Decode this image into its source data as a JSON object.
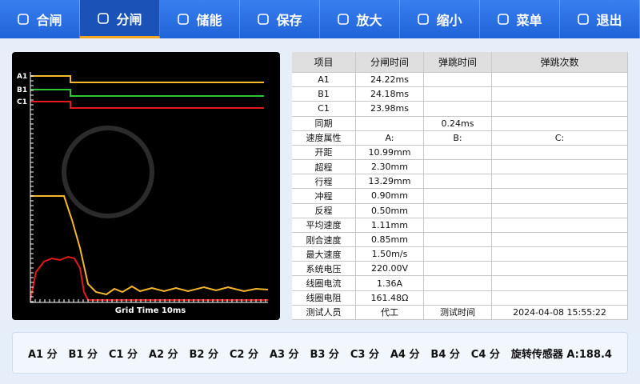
{
  "toolbar": {
    "buttons": [
      "合闸",
      "分闸",
      "储能",
      "保存",
      "放大",
      "缩小",
      "菜单",
      "退出"
    ],
    "active": 1
  },
  "plot": {
    "channels": [
      "A1",
      "B1",
      "C1"
    ],
    "caption": "Grid Time 10ms"
  },
  "table": {
    "header": [
      "项目",
      "分闸时间",
      "弹跳时间",
      "弹跳次数"
    ],
    "rows": [
      {
        "c1": "A1",
        "c2": "24.22ms"
      },
      {
        "c1": "B1",
        "c2": "24.18ms"
      },
      {
        "c1": "C1",
        "c2": "23.98ms"
      },
      {
        "c1": "同期",
        "c3": "0.24ms"
      },
      {
        "c1": "速度属性",
        "c2": "A:",
        "c3": "B:",
        "c4": "C:"
      },
      {
        "c1": "开距",
        "c2": "10.99mm"
      },
      {
        "c1": "超程",
        "c2": "2.30mm"
      },
      {
        "c1": "行程",
        "c2": "13.29mm"
      },
      {
        "c1": "冲程",
        "c2": "0.90mm"
      },
      {
        "c1": "反程",
        "c2": "0.50mm"
      },
      {
        "c1": "平均速度",
        "c2": "1.11mm"
      },
      {
        "c1": "刚合速度",
        "c2": "0.85mm"
      },
      {
        "c1": "最大速度",
        "c2": "1.50m/s"
      },
      {
        "c1": "系统电压",
        "c2": "220.00V"
      },
      {
        "c1": "线圈电流",
        "c2": "1.36A"
      },
      {
        "c1": "线圈电阻",
        "c2": "161.48Ω"
      },
      {
        "c1": "测试人员",
        "c2": "代工",
        "c3": "测试时间",
        "c4": "2024-04-08 15:55:22"
      }
    ]
  },
  "status": {
    "items": [
      "A1 分",
      "B1 分",
      "C1 分",
      "A2 分",
      "B2 分",
      "C2 分",
      "A3 分",
      "B3 分",
      "C3 分",
      "A4 分",
      "B4 分",
      "C4 分",
      "旋转传感器 A:188.4"
    ]
  }
}
